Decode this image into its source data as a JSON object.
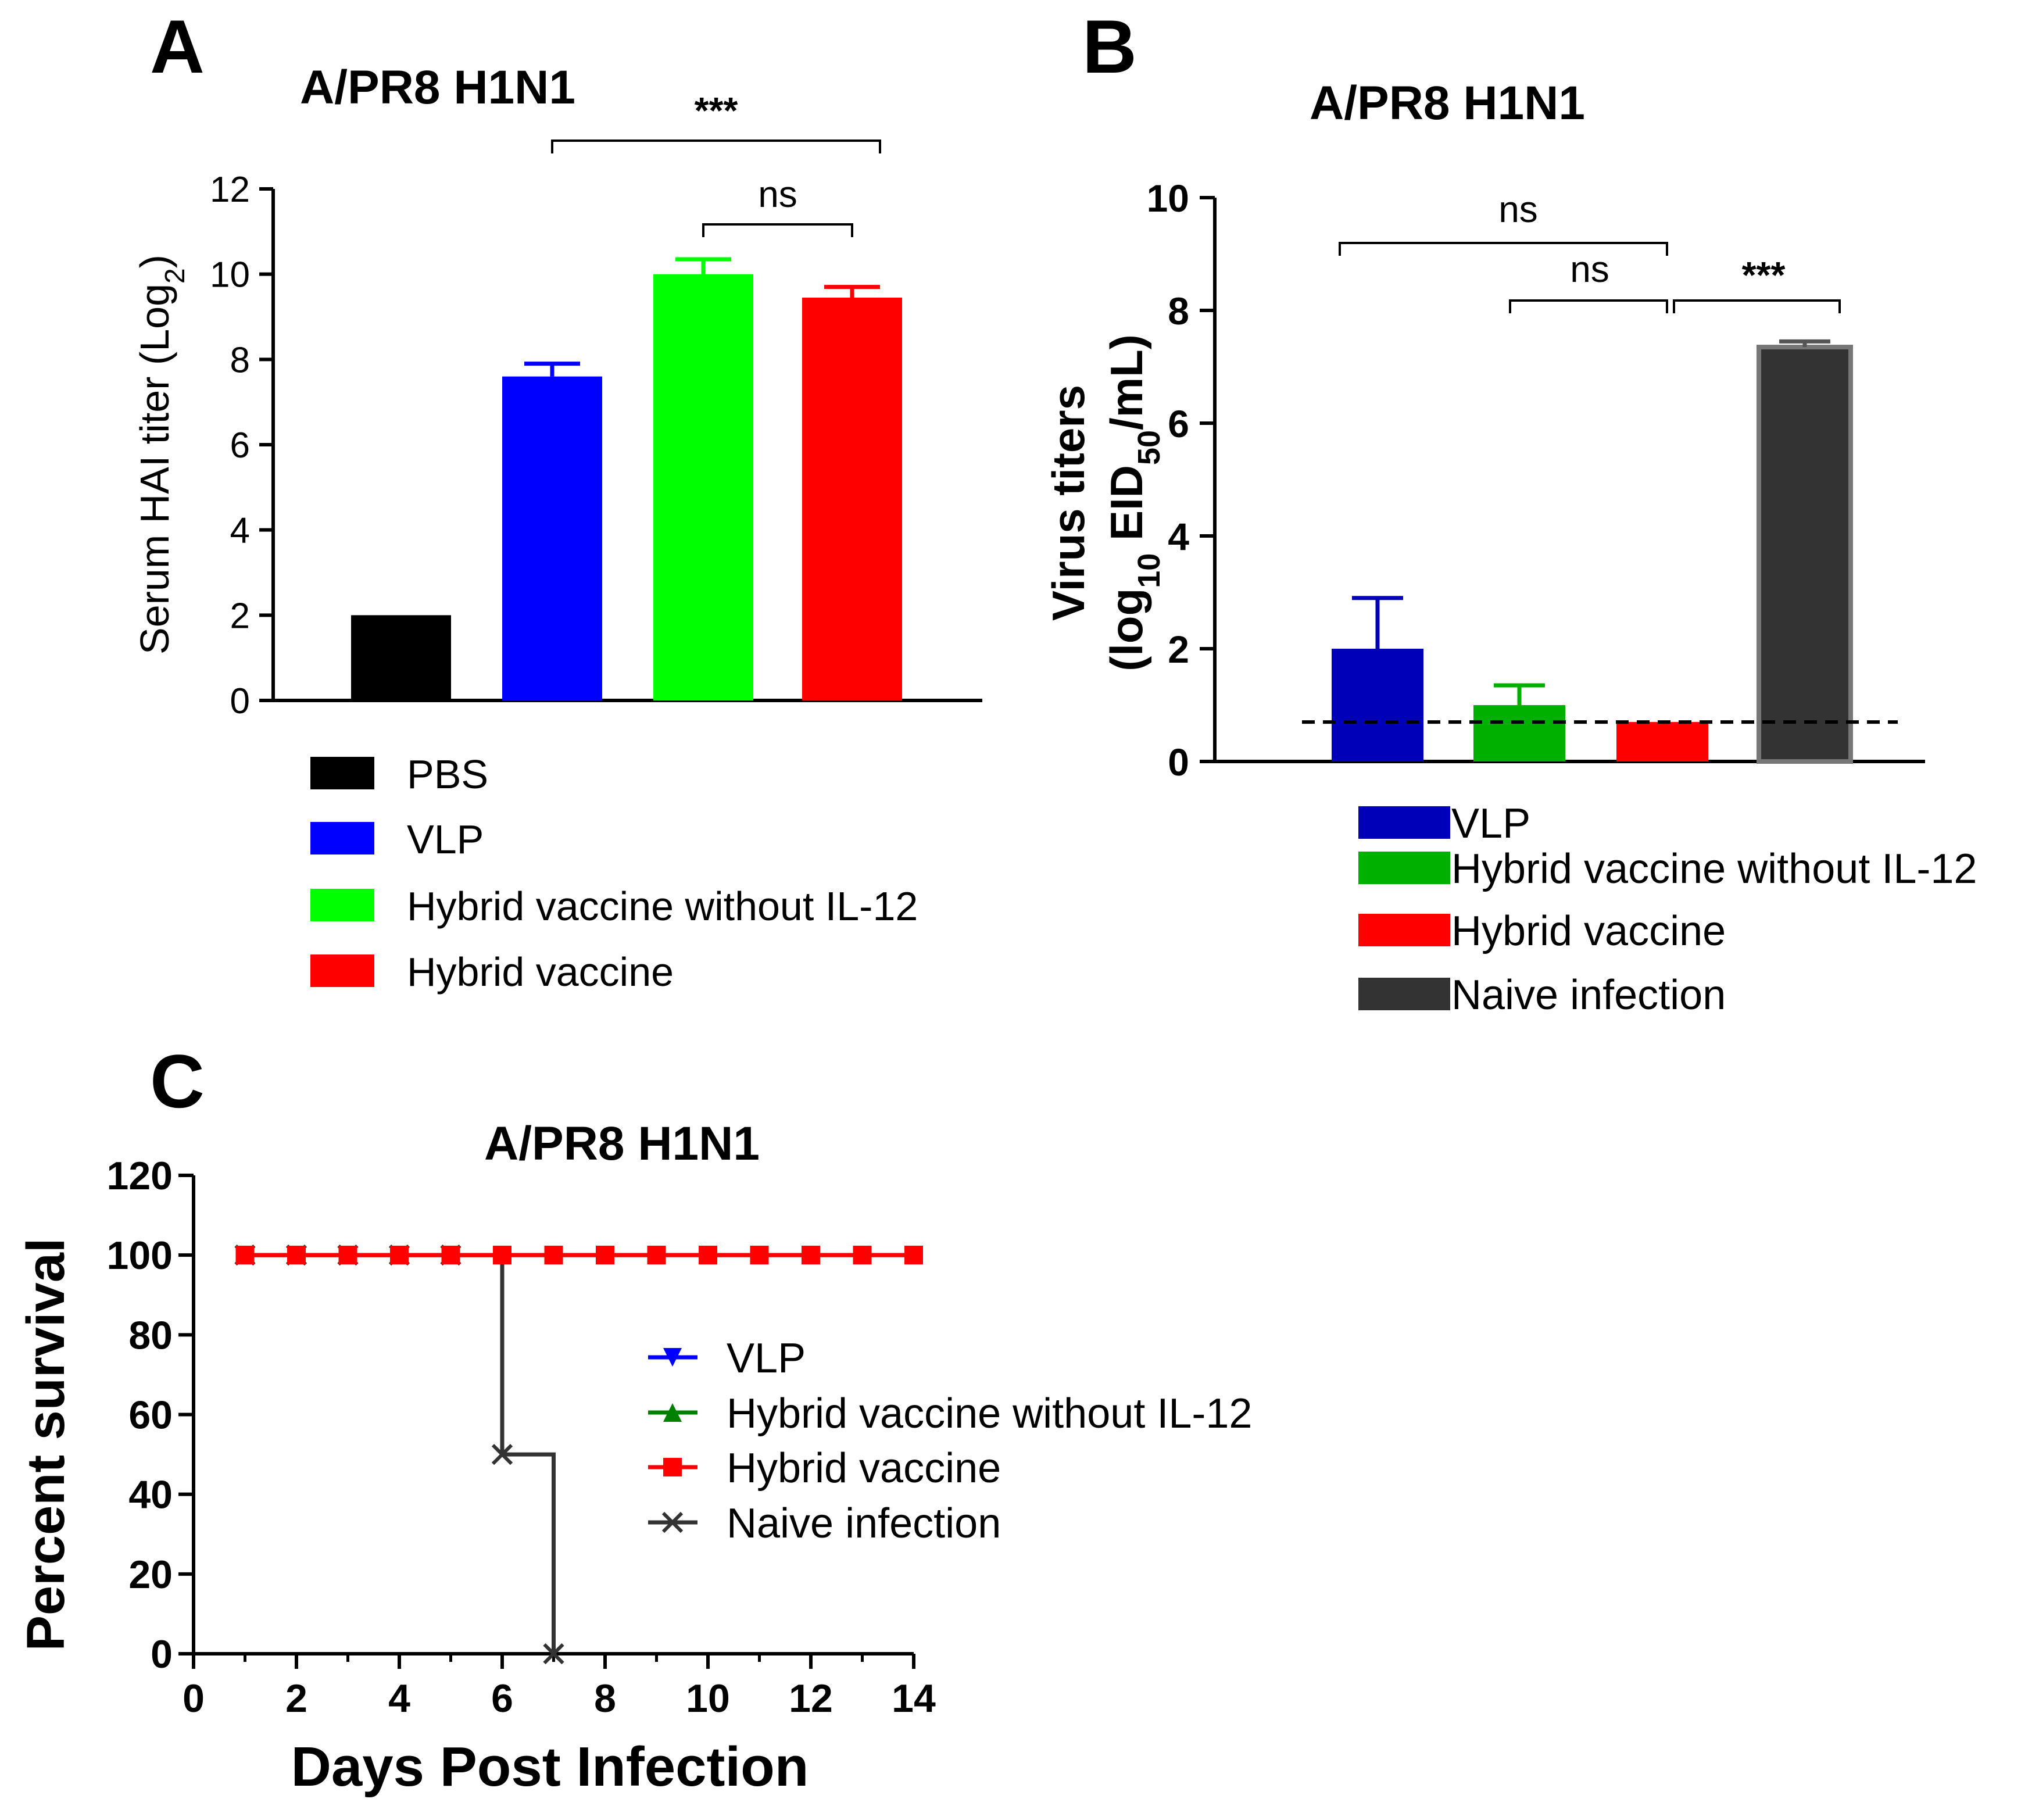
{
  "chart_data": [
    {
      "panel": "A",
      "type": "bar",
      "title": "A/PR8 H1N1",
      "ylabel_main": "Serum HAI titer (Log",
      "ylabel_sub": "2",
      "ylabel_end": ")",
      "ylim": [
        0,
        12
      ],
      "yticks": [
        "0",
        "2",
        "4",
        "6",
        "8",
        "10",
        "12"
      ],
      "categories": [
        "PBS",
        "VLP",
        "Hybrid vaccine without IL-12",
        "Hybrid vaccine"
      ],
      "values": [
        2.0,
        7.6,
        10.0,
        9.45
      ],
      "errors": [
        0,
        0.3,
        0.35,
        0.25
      ],
      "colors": [
        "#000000",
        "#0000ff",
        "#00ff00",
        "#ff0000"
      ],
      "significance": [
        {
          "label": "***",
          "from": "VLP",
          "to": "Hybrid vaccine"
        },
        {
          "label": "ns",
          "from": "Hybrid vaccine without IL-12",
          "to": "Hybrid vaccine"
        }
      ]
    },
    {
      "panel": "B",
      "type": "bar",
      "title": "A/PR8 H1N1",
      "ylabel_line1": "Virus titers",
      "ylabel_line2_a": "(log",
      "ylabel_line2_sub1": "10",
      "ylabel_line2_b": " EID",
      "ylabel_line2_sub2": "50",
      "ylabel_line2_c": "/mL)",
      "ylim": [
        0,
        10
      ],
      "yticks": [
        "0",
        "2",
        "4",
        "6",
        "8",
        "10"
      ],
      "categories": [
        "VLP",
        "Hybrid vaccine without IL-12",
        "Hybrid vaccine",
        "Naive infection"
      ],
      "values": [
        2.0,
        1.0,
        0.7,
        7.35
      ],
      "errors": [
        0.9,
        0.35,
        0.0,
        0.1
      ],
      "colors": [
        "#0000b8",
        "#00b000",
        "#ff0000",
        "#333333"
      ],
      "detection_limit": 0.7,
      "significance": [
        {
          "label": "ns",
          "from": "VLP",
          "to": "Hybrid vaccine"
        },
        {
          "label": "ns",
          "from": "Hybrid vaccine without IL-12",
          "to": "Hybrid vaccine"
        },
        {
          "label": "***",
          "from": "Hybrid vaccine",
          "to": "Naive infection"
        }
      ]
    },
    {
      "panel": "C",
      "type": "line",
      "title": "A/PR8 H1N1",
      "xlabel": "Days Post Infection",
      "ylabel": "Percent survival",
      "xlim": [
        0,
        14
      ],
      "ylim": [
        0,
        120
      ],
      "xticks": [
        "0",
        "2",
        "4",
        "6",
        "8",
        "10",
        "12",
        "14"
      ],
      "yticks": [
        "0",
        "20",
        "40",
        "60",
        "80",
        "100",
        "120"
      ],
      "series": [
        {
          "name": "VLP",
          "color": "#0000ff",
          "marker": "triangle-down",
          "x": [
            1,
            2,
            3,
            4,
            5,
            6,
            7,
            8,
            9,
            10,
            11,
            12,
            13,
            14
          ],
          "y": [
            100,
            100,
            100,
            100,
            100,
            100,
            100,
            100,
            100,
            100,
            100,
            100,
            100,
            100
          ]
        },
        {
          "name": "Hybrid vaccine without IL-12",
          "color": "#008000",
          "marker": "triangle-up",
          "x": [
            1,
            2,
            3,
            4,
            5,
            6,
            7,
            8,
            9,
            10,
            11,
            12,
            13,
            14
          ],
          "y": [
            100,
            100,
            100,
            100,
            100,
            100,
            100,
            100,
            100,
            100,
            100,
            100,
            100,
            100
          ]
        },
        {
          "name": "Hybrid vaccine",
          "color": "#ff0000",
          "marker": "square",
          "x": [
            1,
            2,
            3,
            4,
            5,
            6,
            7,
            8,
            9,
            10,
            11,
            12,
            13,
            14
          ],
          "y": [
            100,
            100,
            100,
            100,
            100,
            100,
            100,
            100,
            100,
            100,
            100,
            100,
            100,
            100
          ]
        },
        {
          "name": "Naive infection",
          "color": "#333333",
          "marker": "x",
          "x": [
            1,
            2,
            3,
            4,
            5,
            6,
            7
          ],
          "y": [
            100,
            100,
            100,
            100,
            100,
            50,
            0
          ],
          "step": true
        }
      ]
    }
  ],
  "panel_letters": {
    "a": "A",
    "b": "B",
    "c": "C"
  }
}
